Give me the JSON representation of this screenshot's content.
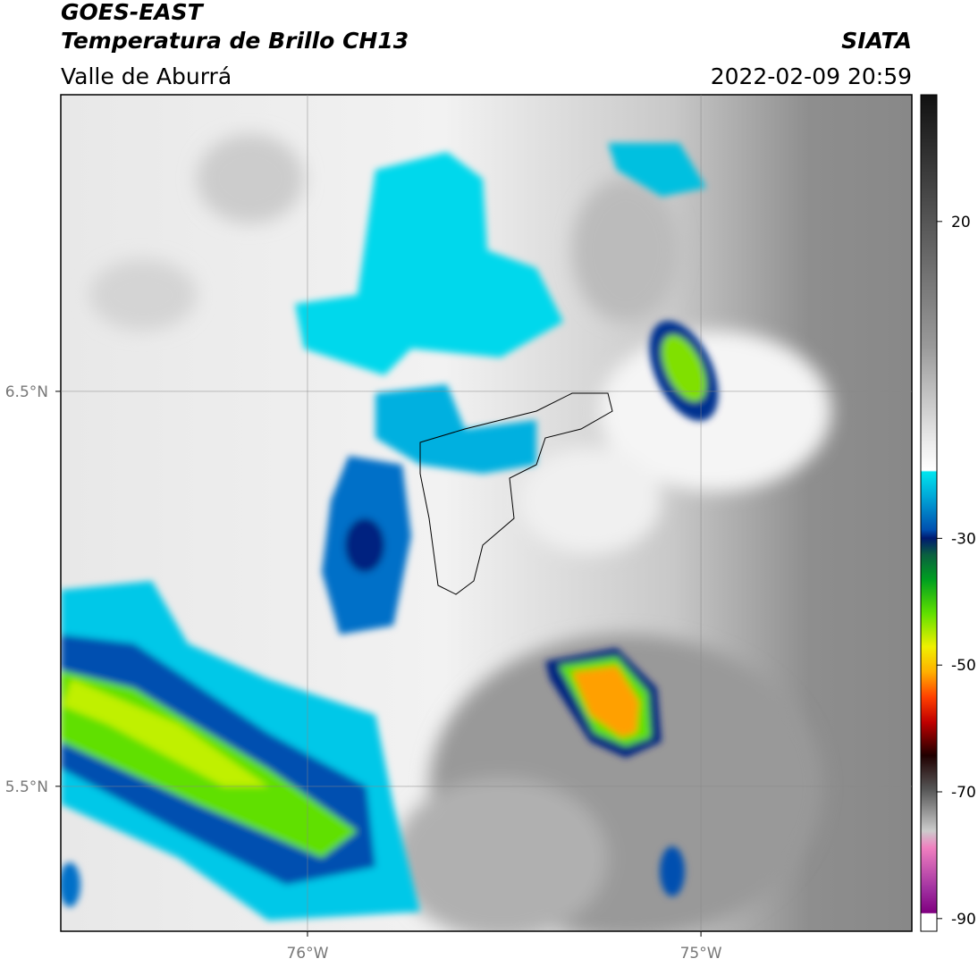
{
  "header": {
    "title": "GOES-EAST",
    "subtitle": "Temperatura de Brillo CH13",
    "region": "Valle de Aburrá",
    "source": "SIATA",
    "datetime": "2022-02-09 20:59"
  },
  "map": {
    "xlim": [
      -76.627,
      -74.464
    ],
    "ylim": [
      5.133,
      7.251
    ],
    "xticks": [
      {
        "value": -76,
        "label": "76°W"
      },
      {
        "value": -75,
        "label": "75°W"
      }
    ],
    "yticks": [
      {
        "value": 6.5,
        "label": "6.5°N"
      },
      {
        "value": 5.5,
        "label": "5.5°N"
      }
    ]
  },
  "colorbar": {
    "lim": [
      -92,
      40
    ],
    "ticks": [
      20,
      -30,
      -50,
      -70,
      -90
    ]
  }
}
